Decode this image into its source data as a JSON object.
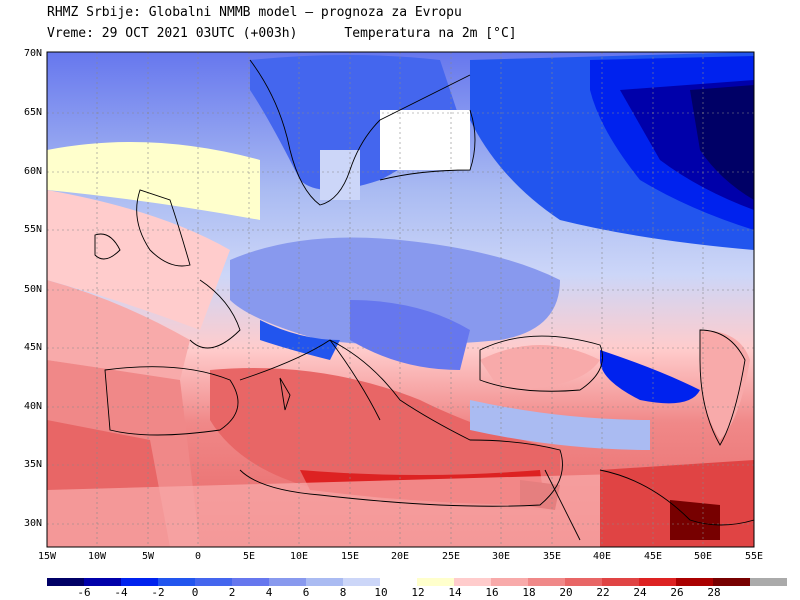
{
  "header": {
    "line1": "RHMZ Srbije: Globalni NMMB model – prognoza za Evropu",
    "line2": "Vreme: 29 OCT 2021 03UTC (+003h)      Temperatura na 2m [°C]"
  },
  "axes": {
    "lat_labels": [
      "70N",
      "65N",
      "60N",
      "55N",
      "50N",
      "45N",
      "40N",
      "35N",
      "30N"
    ],
    "lon_labels": [
      "15W",
      "10W",
      "5W",
      "0",
      "5E",
      "10E",
      "15E",
      "20E",
      "25E",
      "30E",
      "35E",
      "40E",
      "45E",
      "50E",
      "55E"
    ]
  },
  "colorbar": {
    "colors": [
      "#000066",
      "#0000aa",
      "#0022ee",
      "#2255ee",
      "#4466ee",
      "#6677ee",
      "#8899ee",
      "#aabbf2",
      "#ccd6f8",
      "#ffffff",
      "#ffffcc",
      "#ffcccc",
      "#f8aaaa",
      "#f08888",
      "#e86666",
      "#e04444",
      "#dd2222",
      "#aa0000",
      "#770000",
      "#aaaaaa"
    ],
    "labels": [
      "-6",
      "-4",
      "-2",
      "0",
      "2",
      "4",
      "6",
      "8",
      "10",
      "12",
      "14",
      "16",
      "18",
      "20",
      "22",
      "24",
      "26",
      "28"
    ]
  }
}
